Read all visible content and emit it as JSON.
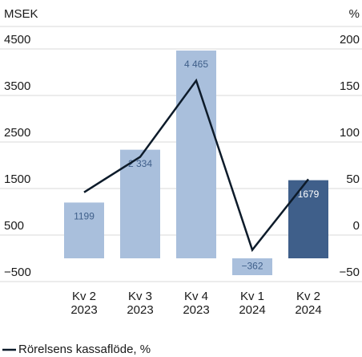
{
  "chart_data": {
    "type": "bar_line",
    "y_unit": "MSEK",
    "y2_unit": "%",
    "categories": [
      [
        "Kv 2",
        "2023"
      ],
      [
        "Kv 3",
        "2023"
      ],
      [
        "Kv 4",
        "2023"
      ],
      [
        "Kv 1",
        "2024"
      ],
      [
        "Kv 2",
        "2024"
      ]
    ],
    "bars": {
      "values": [
        1199,
        2334,
        4465,
        -362,
        1679
      ],
      "value_labels": [
        "1199",
        "2 334",
        "4 465",
        "−362",
        "1679"
      ],
      "colors": [
        "#a9bfdc",
        "#a9bfdc",
        "#a9bfdc",
        "#a9bfdc",
        "#3f5f8a"
      ],
      "label_colors": [
        "#3f5f8a",
        "#3f5f8a",
        "#3f5f8a",
        "#3f5f8a",
        "#ffffff"
      ]
    },
    "line": {
      "name": "Rörelsens kassaflöde, %",
      "color": "#0d1b2a",
      "axis": "y2",
      "values": [
        46,
        84,
        166,
        -16,
        60
      ]
    },
    "ylim": [
      -500,
      4500
    ],
    "yticks": [
      {
        "value": -500,
        "label": "−500"
      },
      500,
      1500,
      2500,
      3500,
      4500
    ],
    "y2lim": [
      -50,
      200
    ],
    "y2ticks": [
      {
        "value": -50,
        "label": "−50"
      },
      0,
      50,
      100,
      150,
      200
    ],
    "grid": true,
    "legend": "bottom-left"
  }
}
